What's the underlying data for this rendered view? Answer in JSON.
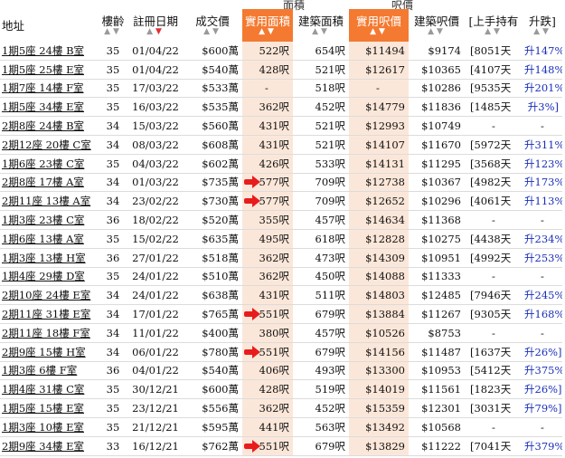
{
  "groups": {
    "area": "面積",
    "price": "呎價"
  },
  "headers": {
    "address": "地址",
    "age": "樓齡",
    "reg_date": "註冊日期",
    "price": "成交價",
    "saleable_area": "實用面積",
    "gross_area": "建築面積",
    "saleable_price": "實用呎價",
    "gross_price": "建築呎價",
    "holding": "[上手持有",
    "change": "升跌]"
  },
  "sort_arrows": "▲▼",
  "rows": [
    {
      "address": "1期5座 24樓 B室",
      "age": "35",
      "date": "01/04/22",
      "price": "$600萬",
      "sa": "522呎",
      "ga": "654呎",
      "sp": "$11494",
      "gp": "$9174",
      "hold": "[8051天",
      "chg": "升147%]"
    },
    {
      "address": "1期5座 25樓 E室",
      "age": "35",
      "date": "01/04/22",
      "price": "$540萬",
      "sa": "428呎",
      "ga": "521呎",
      "sp": "$12617",
      "gp": "$10365",
      "hold": "[4107天",
      "chg": "升148%]"
    },
    {
      "address": "1期7座 14樓 F室",
      "age": "35",
      "date": "17/03/22",
      "price": "$533萬",
      "sa": "-",
      "ga": "518呎",
      "sp": "-",
      "gp": "$10286",
      "hold": "[9535天",
      "chg": "升201%]"
    },
    {
      "address": "1期5座 34樓 E室",
      "age": "35",
      "date": "16/03/22",
      "price": "$535萬",
      "sa": "362呎",
      "ga": "452呎",
      "sp": "$14779",
      "gp": "$11836",
      "hold": "[1485天",
      "chg": "升3%]"
    },
    {
      "address": "2期8座 24樓 B室",
      "age": "34",
      "date": "15/03/22",
      "price": "$560萬",
      "sa": "431呎",
      "ga": "521呎",
      "sp": "$12993",
      "gp": "$10749",
      "hold": "-",
      "chg": "-"
    },
    {
      "address": "2期12座 20樓 C室",
      "age": "34",
      "date": "08/03/22",
      "price": "$608萬",
      "sa": "431呎",
      "ga": "521呎",
      "sp": "$14107",
      "gp": "$11670",
      "hold": "[5972天",
      "chg": "升311%]"
    },
    {
      "address": "1期6座 23樓 C室",
      "age": "35",
      "date": "04/03/22",
      "price": "$602萬",
      "sa": "426呎",
      "ga": "533呎",
      "sp": "$14131",
      "gp": "$11295",
      "hold": "[3568天",
      "chg": "升123%]"
    },
    {
      "address": "2期8座 17樓 A室",
      "age": "34",
      "date": "01/03/22",
      "price": "$735萬",
      "sa": "577呎",
      "ga": "709呎",
      "sp": "$12738",
      "gp": "$10367",
      "hold": "[4982天",
      "chg": "升173%]"
    },
    {
      "address": "2期11座 13樓 A室",
      "age": "34",
      "date": "23/02/22",
      "price": "$730萬",
      "sa": "577呎",
      "ga": "709呎",
      "sp": "$12652",
      "gp": "$10296",
      "hold": "[4061天",
      "chg": "升113%]"
    },
    {
      "address": "1期3座 23樓 C室",
      "age": "36",
      "date": "18/02/22",
      "price": "$520萬",
      "sa": "355呎",
      "ga": "457呎",
      "sp": "$14634",
      "gp": "$11368",
      "hold": "-",
      "chg": "-"
    },
    {
      "address": "1期6座 13樓 A室",
      "age": "35",
      "date": "15/02/22",
      "price": "$635萬",
      "sa": "495呎",
      "ga": "618呎",
      "sp": "$12828",
      "gp": "$10275",
      "hold": "[4438天",
      "chg": "升234%]"
    },
    {
      "address": "1期3座 13樓 H室",
      "age": "36",
      "date": "27/01/22",
      "price": "$518萬",
      "sa": "362呎",
      "ga": "473呎",
      "sp": "$14309",
      "gp": "$10951",
      "hold": "[4992天",
      "chg": "升253%]"
    },
    {
      "address": "1期4座 29樓 D室",
      "age": "35",
      "date": "24/01/22",
      "price": "$510萬",
      "sa": "362呎",
      "ga": "450呎",
      "sp": "$14088",
      "gp": "$11333",
      "hold": "-",
      "chg": "-"
    },
    {
      "address": "2期10座 24樓 E室",
      "age": "34",
      "date": "24/01/22",
      "price": "$638萬",
      "sa": "431呎",
      "ga": "511呎",
      "sp": "$14803",
      "gp": "$12485",
      "hold": "[7946天",
      "chg": "升245%]"
    },
    {
      "address": "2期11座 31樓 E室",
      "age": "34",
      "date": "17/01/22",
      "price": "$765萬",
      "sa": "551呎",
      "ga": "679呎",
      "sp": "$13884",
      "gp": "$11267",
      "hold": "[9305天",
      "chg": "升168%]"
    },
    {
      "address": "2期11座 18樓 F室",
      "age": "34",
      "date": "11/01/22",
      "price": "$400萬",
      "sa": "380呎",
      "ga": "457呎",
      "sp": "$10526",
      "gp": "$8753",
      "hold": "-",
      "chg": "-"
    },
    {
      "address": "2期9座 15樓 H室",
      "age": "34",
      "date": "06/01/22",
      "price": "$780萬",
      "sa": "551呎",
      "ga": "679呎",
      "sp": "$14156",
      "gp": "$11487",
      "hold": "[1637天",
      "chg": "升26%]"
    },
    {
      "address": "1期3座 6樓 F室",
      "age": "36",
      "date": "04/01/22",
      "price": "$540萬",
      "sa": "406呎",
      "ga": "493呎",
      "sp": "$13300",
      "gp": "$10953",
      "hold": "[5412天",
      "chg": "升375%]"
    },
    {
      "address": "1期4座 31樓 C室",
      "age": "35",
      "date": "30/12/21",
      "price": "$600萬",
      "sa": "428呎",
      "ga": "519呎",
      "sp": "$14019",
      "gp": "$11561",
      "hold": "[1823天",
      "chg": "升26%]"
    },
    {
      "address": "1期5座 15樓 E室",
      "age": "35",
      "date": "23/12/21",
      "price": "$556萬",
      "sa": "362呎",
      "ga": "452呎",
      "sp": "$15359",
      "gp": "$12301",
      "hold": "[3031天",
      "chg": "升79%]"
    },
    {
      "address": "1期3座 10樓 E室",
      "age": "35",
      "date": "21/12/21",
      "price": "$595萬",
      "sa": "441呎",
      "ga": "563呎",
      "sp": "$13492",
      "gp": "$10568",
      "hold": "-",
      "chg": "-"
    },
    {
      "address": "2期9座 34樓 E室",
      "age": "33",
      "date": "16/12/21",
      "price": "$762萬",
      "sa": "551呎",
      "ga": "679呎",
      "sp": "$13829",
      "gp": "$11222",
      "hold": "[7041天",
      "chg": "升379%]"
    }
  ],
  "annotations": {
    "red_arrow_rows": [
      7,
      8,
      14,
      16,
      21
    ],
    "arrow_color": "#e81c1c",
    "highlight_color": "#f47a31"
  }
}
